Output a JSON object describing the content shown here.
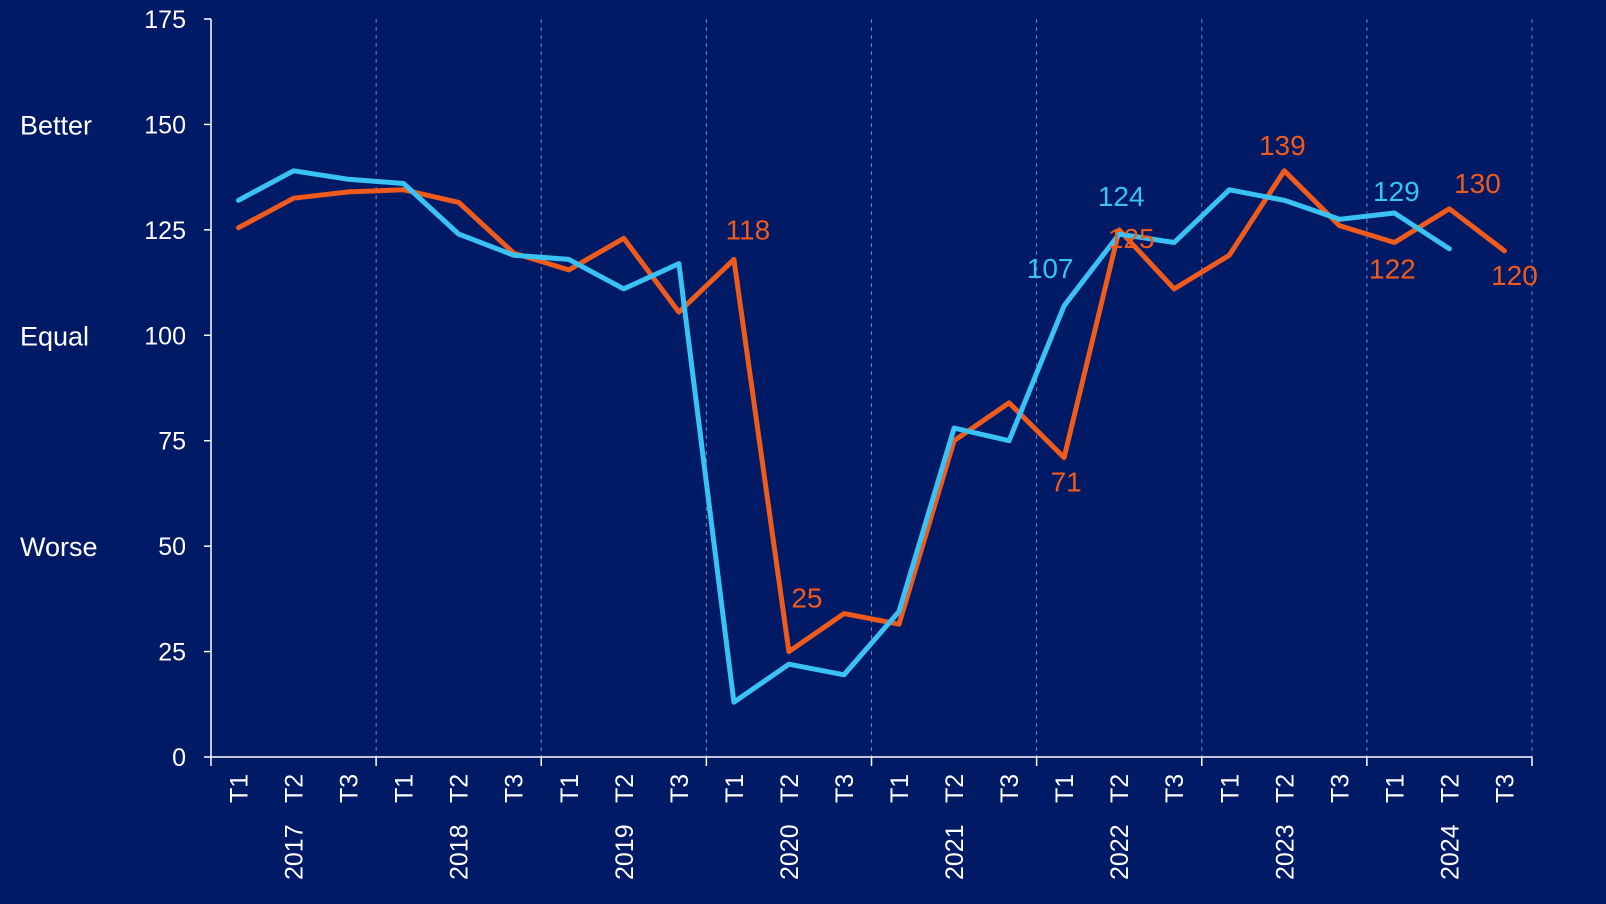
{
  "colors": {
    "background": "#001a66",
    "axis": "#ffffff",
    "grid": "#6f82b8",
    "series_orange": "#ee5b1b",
    "series_cyan": "#39c2f3"
  },
  "side_labels": [
    "Better",
    "Equal",
    "Worse"
  ],
  "chart_data": {
    "type": "line",
    "x": [
      "T1",
      "T2",
      "T3",
      "T1",
      "T2",
      "T3",
      "T1",
      "T2",
      "T3",
      "T1",
      "T2",
      "T3",
      "T1",
      "T2",
      "T3",
      "T1",
      "T2",
      "T3",
      "T1",
      "T2",
      "T3",
      "T1",
      "T2",
      "T3"
    ],
    "year_labels": [
      {
        "label": "2017",
        "index": 1
      },
      {
        "label": "2018",
        "index": 4
      },
      {
        "label": "2019",
        "index": 7
      },
      {
        "label": "2020",
        "index": 10
      },
      {
        "label": "2021",
        "index": 13
      },
      {
        "label": "2022",
        "index": 16
      },
      {
        "label": "2023",
        "index": 19
      },
      {
        "label": "2024",
        "index": 22
      }
    ],
    "ylim": [
      0,
      175
    ],
    "yticks": [
      0,
      25,
      50,
      75,
      100,
      125,
      150,
      175
    ],
    "side_label_values": [
      150,
      100,
      50
    ],
    "grid": "vertical dashed between years",
    "series": [
      {
        "color": "#ee5b1b",
        "values": [
          125.5,
          132.5,
          134,
          134.5,
          131.5,
          119.5,
          115.5,
          123,
          105.5,
          118,
          25,
          34,
          31.5,
          75,
          84,
          71,
          125,
          111,
          119,
          139,
          126,
          122,
          130,
          120
        ]
      },
      {
        "color": "#39c2f3",
        "values": [
          132,
          139,
          137,
          136,
          124,
          119,
          118,
          111,
          117,
          13,
          22,
          19.5,
          34.5,
          78,
          75,
          107,
          124,
          122,
          134.5,
          132,
          127.5,
          129,
          120.5,
          null
        ]
      }
    ],
    "data_labels": [
      {
        "series": 0,
        "index": 9,
        "text": "118"
      },
      {
        "series": 0,
        "index": 10,
        "text": "25"
      },
      {
        "series": 0,
        "index": 15,
        "text": "71"
      },
      {
        "series": 0,
        "index": 16,
        "text": "125"
      },
      {
        "series": 0,
        "index": 19,
        "text": "139"
      },
      {
        "series": 0,
        "index": 21,
        "text": "122"
      },
      {
        "series": 0,
        "index": 22,
        "text": "130"
      },
      {
        "series": 0,
        "index": 23,
        "text": "120"
      },
      {
        "series": 1,
        "index": 15,
        "text": "107"
      },
      {
        "series": 1,
        "index": 16,
        "text": "124"
      },
      {
        "series": 1,
        "index": 21,
        "text": "129"
      }
    ]
  }
}
